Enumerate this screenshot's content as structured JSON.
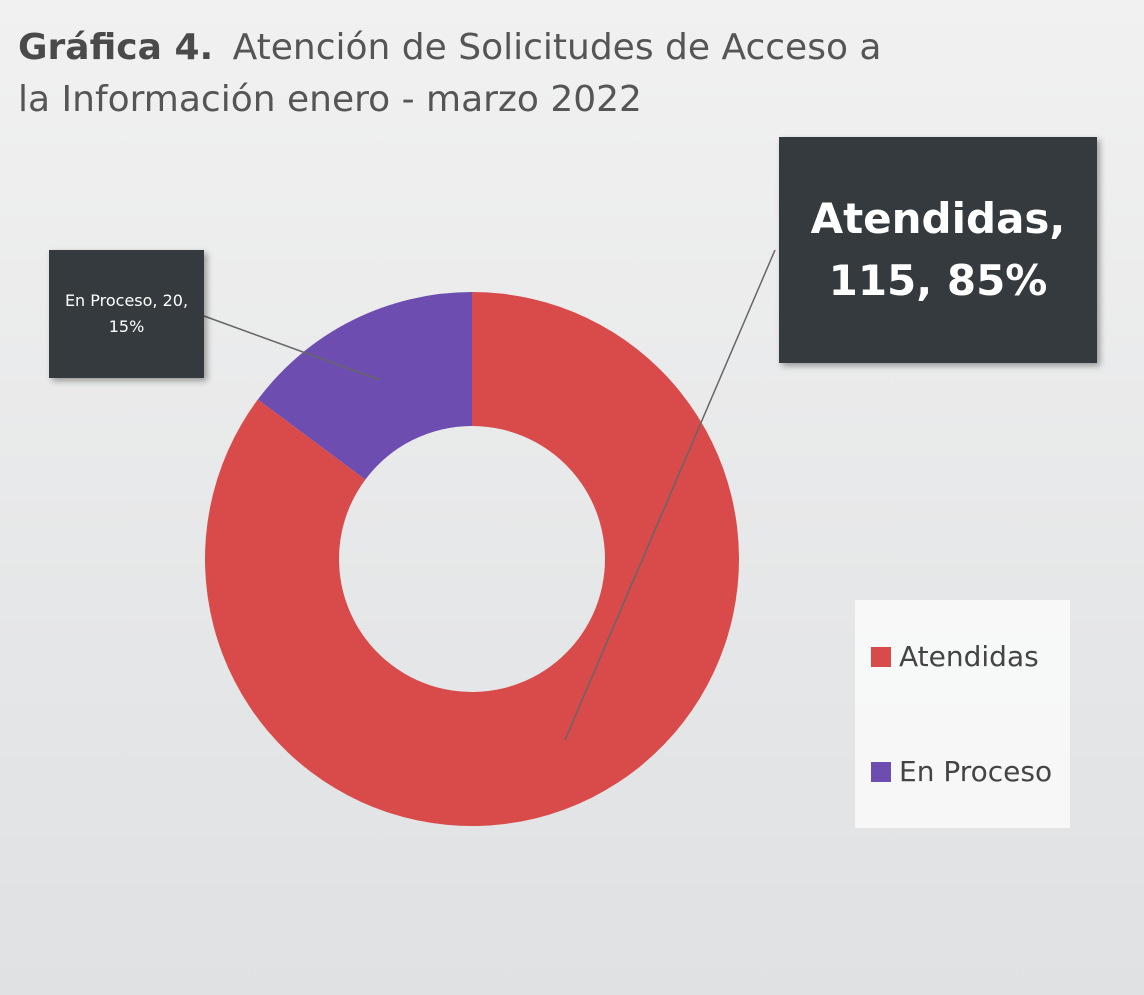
{
  "chart_data": {
    "type": "donut",
    "title_label": "Gráfica 4.",
    "title": "Atención de Solicitudes de Acceso a la Información enero - marzo 2022",
    "categories": [
      "Atendidas",
      "En Proceso"
    ],
    "values": [
      115,
      20
    ],
    "percentages": [
      85,
      15
    ],
    "value_labels": [
      "Atendidas, 115, 85%",
      "En Proceso, 20, 15%"
    ],
    "colors": [
      "#d94a4a",
      "#6e4db0"
    ],
    "legend": "right"
  }
}
